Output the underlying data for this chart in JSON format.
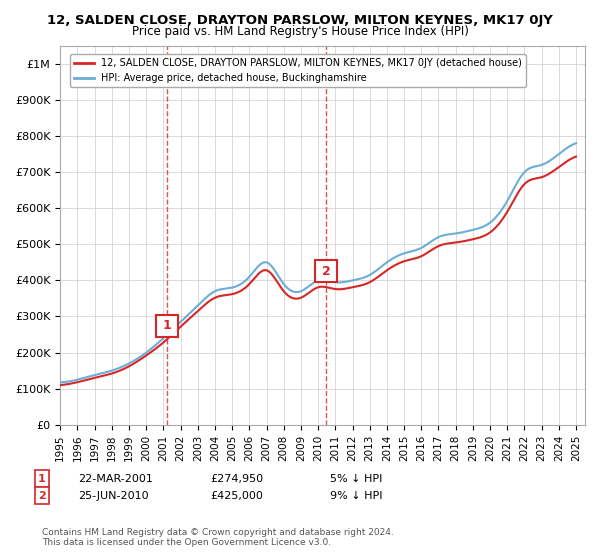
{
  "title": "12, SALDEN CLOSE, DRAYTON PARSLOW, MILTON KEYNES, MK17 0JY",
  "subtitle": "Price paid vs. HM Land Registry's House Price Index (HPI)",
  "hpi_label": "HPI: Average price, detached house, Buckinghamshire",
  "price_label": "12, SALDEN CLOSE, DRAYTON PARSLOW, MILTON KEYNES, MK17 0JY (detached house)",
  "hpi_color": "#6baed6",
  "price_color": "#d62728",
  "vline_color": "#d62728",
  "background_color": "#ffffff",
  "grid_color": "#cccccc",
  "ylim": [
    0,
    1050000
  ],
  "yticks": [
    0,
    100000,
    200000,
    300000,
    400000,
    500000,
    600000,
    700000,
    800000,
    900000,
    1000000
  ],
  "ytick_labels": [
    "£0",
    "£100K",
    "£200K",
    "£300K",
    "£400K",
    "£500K",
    "£600K",
    "£700K",
    "£800K",
    "£900K",
    "£1M"
  ],
  "xlim_start": 1995.0,
  "xlim_end": 2025.5,
  "sale1_year": 2001.22,
  "sale1_price": 274950,
  "sale1_label": "1",
  "sale1_date": "22-MAR-2001",
  "sale1_amount": "£274,950",
  "sale1_pct": "5% ↓ HPI",
  "sale2_year": 2010.47,
  "sale2_price": 425000,
  "sale2_label": "2",
  "sale2_date": "25-JUN-2010",
  "sale2_amount": "£425,000",
  "sale2_pct": "9% ↓ HPI",
  "copyright": "Contains HM Land Registry data © Crown copyright and database right 2024.\nThis data is licensed under the Open Government Licence v3.0."
}
